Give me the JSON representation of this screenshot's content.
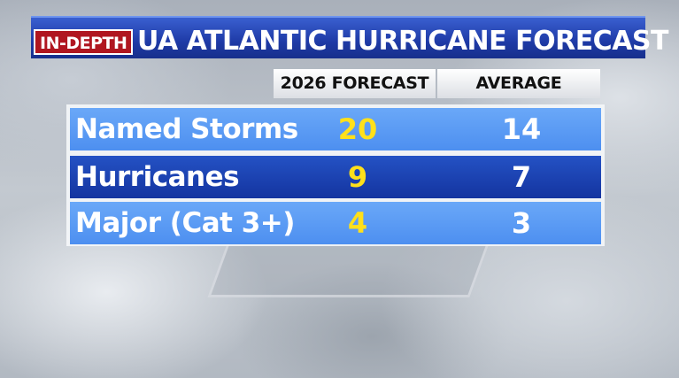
{
  "header": {
    "badge": "IN-DEPTH",
    "title": "UA ATLANTIC HURRICANE FORECAST"
  },
  "table": {
    "columns": [
      "2026 FORECAST",
      "AVERAGE"
    ],
    "rows": [
      [
        "Named Storms",
        20,
        14
      ],
      [
        "Hurricanes",
        9,
        7
      ],
      [
        "Major (Cat 3+)",
        4,
        3
      ]
    ]
  }
}
